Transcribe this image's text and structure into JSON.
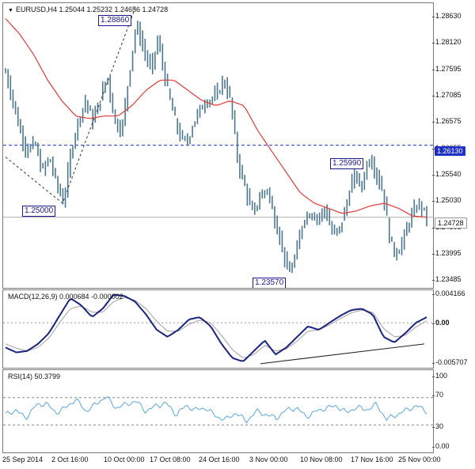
{
  "main": {
    "symbol_line": "EURUSD,H4  1.25044 1.25232 1.24656 1.24728",
    "price_ticks": [
      "1.28630",
      "1.28120",
      "1.27595",
      "1.27085",
      "1.26575",
      "1.26055",
      "1.25540",
      "1.25030",
      "1.24505",
      "1.23995",
      "1.23485"
    ],
    "blue_level_label": "1.26130",
    "current_price_label": "1.24728",
    "annotations": [
      "1.28860",
      "1.25000",
      "1.25990",
      "1.23570"
    ],
    "colors": {
      "bars": "#4d7890",
      "ma": "#e03a3a",
      "blue_level": "#1c2fc8",
      "current": "#b0b0b0"
    }
  },
  "macd": {
    "header": "MACD(12,26,9) 0.000684 -0.000002",
    "ticks": [
      "0.004166",
      "0.00",
      "-0.005707"
    ],
    "colors": {
      "macd": "#1a237e",
      "signal": "#a0a0a0"
    }
  },
  "rsi": {
    "header": "RSI(14) 50.3799",
    "ticks": [
      "100",
      "70",
      "30",
      "0.00"
    ],
    "colors": {
      "line": "#5ba7d9"
    }
  },
  "xaxis": {
    "labels": [
      "25 Sep 2014",
      "2 Oct 16:00",
      "10 Oct 00:00",
      "17 Oct 08:00",
      "24 Oct 16:00",
      "3 Nov 00:00",
      "10 Nov 08:00",
      "17 Nov 16:00",
      "25 Nov 00:00"
    ]
  },
  "chart_data": [
    {
      "type": "candlestick",
      "symbol": "EURUSD",
      "timeframe": "H4",
      "ylim": [
        1.2335,
        1.289
      ],
      "x": [
        "25 Sep 2014",
        "2 Oct 16:00",
        "10 Oct 00:00",
        "17 Oct 08:00",
        "24 Oct 16:00",
        "3 Nov 00:00",
        "10 Nov 08:00",
        "17 Nov 16:00",
        "25 Nov 00:00"
      ],
      "close_path": [
        1.2755,
        1.27,
        1.264,
        1.26,
        1.262,
        1.256,
        1.259,
        1.254,
        1.25,
        1.26,
        1.266,
        1.27,
        1.266,
        1.27,
        1.275,
        1.266,
        1.264,
        1.275,
        1.285,
        1.28,
        1.276,
        1.282,
        1.274,
        1.268,
        1.263,
        1.262,
        1.266,
        1.269,
        1.27,
        1.271,
        1.274,
        1.27,
        1.258,
        1.253,
        1.248,
        1.251,
        1.253,
        1.247,
        1.242,
        1.236,
        1.24,
        1.247,
        1.248,
        1.247,
        1.249,
        1.244,
        1.245,
        1.25,
        1.256,
        1.253,
        1.259,
        1.256,
        1.252,
        1.242,
        1.24,
        1.244,
        1.248,
        1.25,
        1.2473
      ],
      "ma_path": [
        1.286,
        1.283,
        1.279,
        1.274,
        1.27,
        1.267,
        1.2665,
        1.267,
        1.267,
        1.269,
        1.272,
        1.274,
        1.274,
        1.272,
        1.27,
        1.269,
        1.27,
        1.269,
        1.264,
        1.26,
        1.256,
        1.252,
        1.25,
        1.249,
        1.248,
        1.2485,
        1.2495,
        1.25,
        1.249,
        1.2475,
        1.2473
      ],
      "horizontal_level": 1.2613,
      "current_price": 1.24728,
      "annotations": [
        {
          "label": "1.28860",
          "value": 1.2886
        },
        {
          "label": "1.25000",
          "value": 1.25
        },
        {
          "label": "1.25990",
          "value": 1.2599
        },
        {
          "label": "1.23570",
          "value": 1.2357
        }
      ]
    },
    {
      "type": "line",
      "name": "MACD(12,26,9)",
      "ylim": [
        -0.005707,
        0.004166
      ],
      "series": [
        {
          "name": "MACD",
          "values": [
            -0.0035,
            -0.0042,
            -0.004,
            -0.003,
            -0.0015,
            0.001,
            0.0035,
            0.0025,
            0.0008,
            0.002,
            0.004,
            0.0038,
            0.003,
            0.0012,
            -0.001,
            -0.002,
            -0.001,
            0.0005,
            0.0008,
            -0.0005,
            -0.003,
            -0.005,
            -0.0055,
            -0.004,
            -0.0025,
            -0.0045,
            -0.0035,
            -0.002,
            -0.0005,
            -0.001,
            0.0,
            0.001,
            0.0018,
            0.002,
            0.0012,
            -0.002,
            -0.0028,
            -0.0015,
            0.0,
            0.0008
          ]
        },
        {
          "name": "Signal",
          "values": [
            -0.003,
            -0.0036,
            -0.004,
            -0.0035,
            -0.0022,
            0.0,
            0.002,
            0.0024,
            0.0015,
            0.0015,
            0.003,
            0.0036,
            0.0032,
            0.002,
            0.0002,
            -0.0012,
            -0.0012,
            -0.0002,
            0.0004,
            0.0,
            -0.0018,
            -0.0038,
            -0.005,
            -0.0045,
            -0.0032,
            -0.004,
            -0.0037,
            -0.0026,
            -0.0012,
            -0.001,
            -0.0003,
            0.0006,
            0.0014,
            0.0018,
            0.0015,
            -0.0008,
            -0.002,
            -0.0018,
            -0.0006,
            0.0003
          ]
        }
      ],
      "trendline": [
        -0.0058,
        -0.003
      ]
    },
    {
      "type": "line",
      "name": "RSI(14)",
      "ylim": [
        0,
        100
      ],
      "levels": [
        70,
        30
      ],
      "values": [
        45,
        52,
        40,
        58,
        62,
        48,
        55,
        68,
        50,
        60,
        72,
        55,
        60,
        65,
        50,
        58,
        62,
        45,
        58,
        52,
        55,
        42,
        38,
        48,
        35,
        50,
        45,
        40,
        52,
        55,
        42,
        50,
        55,
        58,
        48,
        56,
        52,
        60,
        38,
        45,
        52,
        58,
        50
      ]
    }
  ]
}
